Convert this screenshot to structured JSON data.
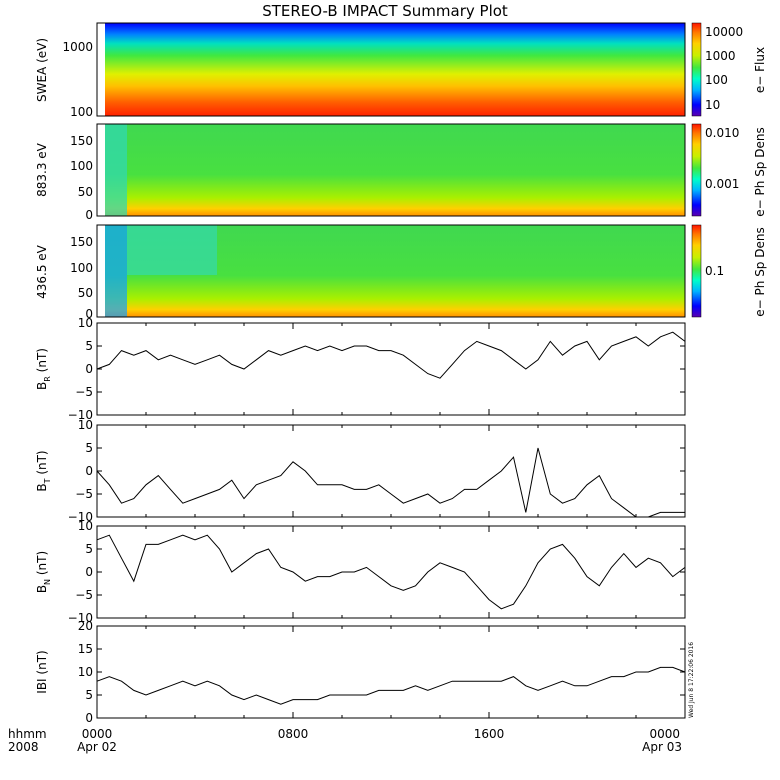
{
  "title": "STEREO-B IMPACT Summary Plot",
  "timestamp": "Wed Jun 8 17:22:06 2016",
  "time_axis": {
    "corner_top": "hhmm",
    "corner_bottom": "2008",
    "ticks": [
      {
        "label": "0000",
        "sub": "Apr 02",
        "hour": 0
      },
      {
        "label": "0800",
        "sub": "",
        "hour": 8
      },
      {
        "label": "1600",
        "sub": "",
        "hour": 16
      },
      {
        "label": "0000",
        "sub": "Apr 03",
        "hour": 24
      }
    ]
  },
  "colors": {
    "trace": "#000000",
    "colormap": [
      "#5a00b0",
      "#0000ff",
      "#00b4ff",
      "#00ffc8",
      "#40e840",
      "#c8f000",
      "#ffd000",
      "#ff7800",
      "#ff1400"
    ]
  },
  "chart_data": [
    {
      "type": "heatmap",
      "ylabel": "SWEA (eV)",
      "ylim": [
        100,
        2000
      ],
      "yscale": "log",
      "yticks": [
        "1000",
        "100"
      ],
      "colorbar": {
        "label": "e− Flux",
        "ticks": [
          "10000",
          "1000",
          "100",
          "10"
        ],
        "scale": "log"
      }
    },
    {
      "type": "heatmap",
      "ylabel": "883.3 eV",
      "ylim": [
        0,
        180
      ],
      "yticks": [
        "150",
        "100",
        "50",
        "0"
      ],
      "colorbar": {
        "label": "e− Ph Sp Dens",
        "ticks": [
          "0.010",
          "0.001"
        ],
        "scale": "log"
      }
    },
    {
      "type": "heatmap",
      "ylabel": "436.5 eV",
      "ylim": [
        0,
        180
      ],
      "yticks": [
        "150",
        "100",
        "50",
        "0"
      ],
      "colorbar": {
        "label": "e− Ph Sp Dens",
        "ticks": [
          "0.1"
        ],
        "scale": "log"
      }
    },
    {
      "type": "line",
      "ylabel": "B",
      "ylabel_sub": "R",
      "ylabel_unit": "(nT)",
      "ylim": [
        -10,
        10
      ],
      "yticks": [
        "10",
        "5",
        "0",
        "−5",
        "−10"
      ],
      "x": [
        0,
        0.5,
        1,
        1.5,
        2,
        2.5,
        3,
        3.5,
        4,
        4.5,
        5,
        5.5,
        6,
        6.5,
        7,
        7.5,
        8,
        8.5,
        9,
        9.5,
        10,
        10.5,
        11,
        11.5,
        12,
        12.5,
        13,
        13.5,
        14,
        14.5,
        15,
        15.5,
        16,
        16.5,
        17,
        17.5,
        18,
        18.5,
        19,
        19.5,
        20,
        20.5,
        21,
        21.5,
        22,
        22.5,
        23,
        23.5,
        24
      ],
      "y": [
        0,
        1,
        4,
        3,
        4,
        2,
        3,
        2,
        1,
        2,
        3,
        1,
        0,
        2,
        4,
        3,
        4,
        5,
        4,
        5,
        4,
        5,
        5,
        4,
        4,
        3,
        1,
        -1,
        -2,
        1,
        4,
        6,
        5,
        4,
        2,
        0,
        2,
        6,
        3,
        5,
        6,
        2,
        5,
        6,
        7,
        5,
        7,
        8,
        6
      ]
    },
    {
      "type": "line",
      "ylabel": "B",
      "ylabel_sub": "T",
      "ylabel_unit": "(nT)",
      "ylim": [
        -10,
        10
      ],
      "yticks": [
        "10",
        "5",
        "0",
        "−5",
        "−10"
      ],
      "x": [
        0,
        0.5,
        1,
        1.5,
        2,
        2.5,
        3,
        3.5,
        4,
        4.5,
        5,
        5.5,
        6,
        6.5,
        7,
        7.5,
        8,
        8.5,
        9,
        9.5,
        10,
        10.5,
        11,
        11.5,
        12,
        12.5,
        13,
        13.5,
        14,
        14.5,
        15,
        15.5,
        16,
        16.5,
        17,
        17.5,
        18,
        18.5,
        19,
        19.5,
        20,
        20.5,
        21,
        21.5,
        22,
        22.5,
        23,
        23.5,
        24
      ],
      "y": [
        0,
        -3,
        -7,
        -6,
        -3,
        -1,
        -4,
        -7,
        -6,
        -5,
        -4,
        -2,
        -6,
        -3,
        -2,
        -1,
        2,
        0,
        -3,
        -3,
        -3,
        -4,
        -4,
        -3,
        -5,
        -7,
        -6,
        -5,
        -7,
        -6,
        -4,
        -4,
        -2,
        0,
        3,
        -9,
        5,
        -5,
        -7,
        -6,
        -3,
        -1,
        -6,
        -8,
        -10,
        -10,
        -9,
        -9,
        -9
      ]
    },
    {
      "type": "line",
      "ylabel": "B",
      "ylabel_sub": "N",
      "ylabel_unit": "(nT)",
      "ylim": [
        -10,
        10
      ],
      "yticks": [
        "10",
        "5",
        "0",
        "−5",
        "−10"
      ],
      "x": [
        0,
        0.5,
        1,
        1.5,
        2,
        2.5,
        3,
        3.5,
        4,
        4.5,
        5,
        5.5,
        6,
        6.5,
        7,
        7.5,
        8,
        8.5,
        9,
        9.5,
        10,
        10.5,
        11,
        11.5,
        12,
        12.5,
        13,
        13.5,
        14,
        14.5,
        15,
        15.5,
        16,
        16.5,
        17,
        17.5,
        18,
        18.5,
        19,
        19.5,
        20,
        20.5,
        21,
        21.5,
        22,
        22.5,
        23,
        23.5,
        24
      ],
      "y": [
        7,
        8,
        3,
        -2,
        6,
        6,
        7,
        8,
        7,
        8,
        5,
        0,
        2,
        4,
        5,
        1,
        0,
        -2,
        -1,
        -1,
        0,
        0,
        1,
        -1,
        -3,
        -4,
        -3,
        0,
        2,
        1,
        0,
        -3,
        -6,
        -8,
        -7,
        -3,
        2,
        5,
        6,
        3,
        -1,
        -3,
        1,
        4,
        1,
        3,
        2,
        -1,
        1
      ]
    },
    {
      "type": "line",
      "ylabel": "IBI",
      "ylabel_unit": "(nT)",
      "ylim": [
        0,
        20
      ],
      "yticks": [
        "20",
        "15",
        "10",
        "5",
        "0"
      ],
      "x": [
        0,
        0.5,
        1,
        1.5,
        2,
        2.5,
        3,
        3.5,
        4,
        4.5,
        5,
        5.5,
        6,
        6.5,
        7,
        7.5,
        8,
        8.5,
        9,
        9.5,
        10,
        10.5,
        11,
        11.5,
        12,
        12.5,
        13,
        13.5,
        14,
        14.5,
        15,
        15.5,
        16,
        16.5,
        17,
        17.5,
        18,
        18.5,
        19,
        19.5,
        20,
        20.5,
        21,
        21.5,
        22,
        22.5,
        23,
        23.5,
        24
      ],
      "y": [
        8,
        9,
        8,
        6,
        5,
        6,
        7,
        8,
        7,
        8,
        7,
        5,
        4,
        5,
        4,
        3,
        4,
        4,
        4,
        5,
        5,
        5,
        5,
        6,
        6,
        6,
        7,
        6,
        7,
        8,
        8,
        8,
        8,
        8,
        9,
        7,
        6,
        7,
        8,
        7,
        7,
        8,
        9,
        9,
        10,
        10,
        11,
        11,
        10
      ]
    }
  ]
}
